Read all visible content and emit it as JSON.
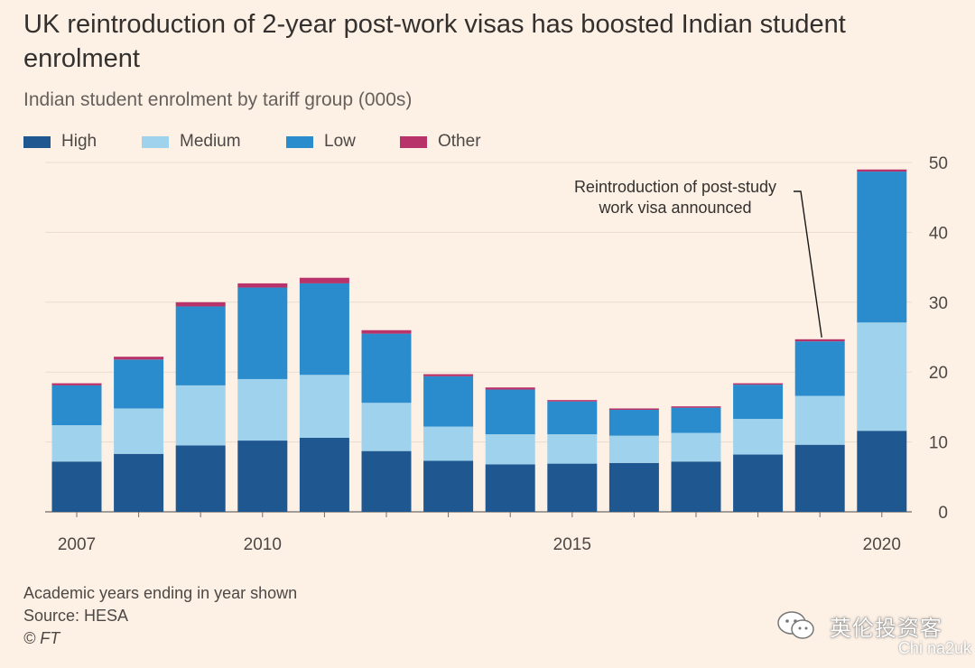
{
  "title": "UK reintroduction of 2-year post-work visas has boosted Indian student enrolment",
  "subtitle": "Indian student enrolment by tariff group (000s)",
  "colors": {
    "High": "#1f5791",
    "Medium": "#9fd2ec",
    "Low": "#2a8ccc",
    "Other": "#b8336a",
    "background": "#fdf1e6",
    "grid": "#e9dccf"
  },
  "chart_data": {
    "type": "bar",
    "stacked": true,
    "categories": [
      2007,
      2008,
      2009,
      2010,
      2011,
      2012,
      2013,
      2014,
      2015,
      2016,
      2017,
      2018,
      2019,
      2020
    ],
    "x_tick_labels": [
      "2007",
      "2010",
      "2015",
      "2020"
    ],
    "y_ticks": [
      0,
      10,
      20,
      30,
      40,
      50
    ],
    "ylim": [
      0,
      50
    ],
    "y_axis_position": "right",
    "grid": true,
    "legend_position": "top-left",
    "series": [
      {
        "name": "High",
        "values": [
          7.2,
          8.3,
          9.5,
          10.2,
          10.6,
          8.7,
          7.3,
          6.8,
          6.9,
          7.0,
          7.2,
          8.2,
          9.6,
          11.6
        ]
      },
      {
        "name": "Medium",
        "values": [
          5.2,
          6.5,
          8.6,
          8.8,
          9.0,
          6.9,
          4.9,
          4.3,
          4.2,
          3.9,
          4.1,
          5.1,
          7.0,
          15.5
        ]
      },
      {
        "name": "Low",
        "values": [
          5.7,
          7.0,
          11.3,
          13.1,
          13.1,
          9.9,
          7.2,
          6.4,
          4.7,
          3.7,
          3.6,
          4.9,
          7.8,
          21.6
        ]
      },
      {
        "name": "Other",
        "values": [
          0.3,
          0.4,
          0.6,
          0.6,
          0.8,
          0.5,
          0.3,
          0.3,
          0.2,
          0.2,
          0.2,
          0.2,
          0.3,
          0.3
        ]
      }
    ],
    "annotations": [
      {
        "text_lines": [
          "Reintroduction of post-study",
          "work visa announced"
        ],
        "points_to": 2019
      }
    ]
  },
  "footnotes": {
    "note": "Academic years ending in year shown",
    "source": "Source: HESA",
    "credit": "© FT"
  },
  "watermark": {
    "chinese": "英伦投资客",
    "english": "Chi na2uk"
  }
}
